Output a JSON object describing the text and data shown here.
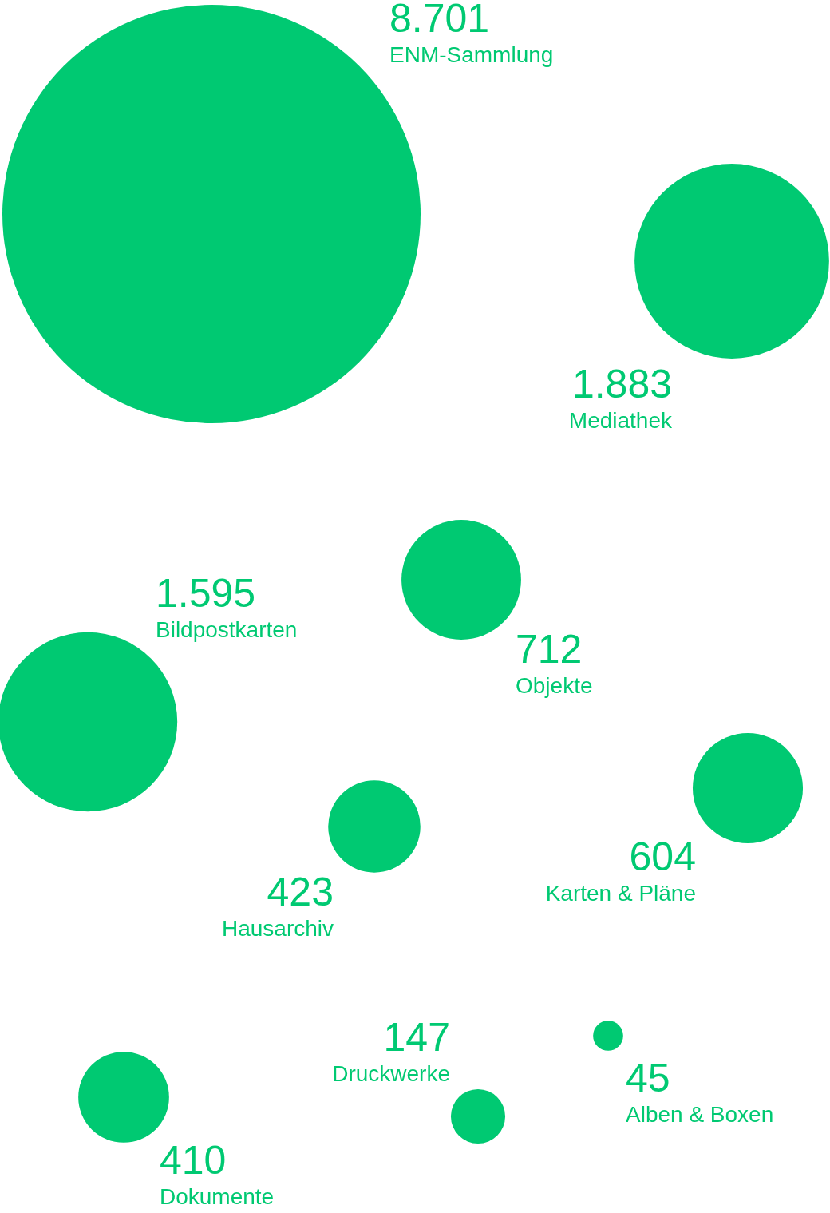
{
  "chart_data": {
    "type": "other",
    "categories": [
      "ENM-Sammlung",
      "Mediathek",
      "Bildpostkarten",
      "Objekte",
      "Karten & Pläne",
      "Hausarchiv",
      "Dokumente",
      "Druckwerke",
      "Alben & Boxen"
    ],
    "values": [
      8701,
      1883,
      1595,
      712,
      604,
      423,
      410,
      147,
      45
    ],
    "value_labels": [
      "8.701",
      "1.883",
      "1.595",
      "712",
      "604",
      "423",
      "410",
      "147",
      "45"
    ],
    "color": "#00c972"
  }
}
